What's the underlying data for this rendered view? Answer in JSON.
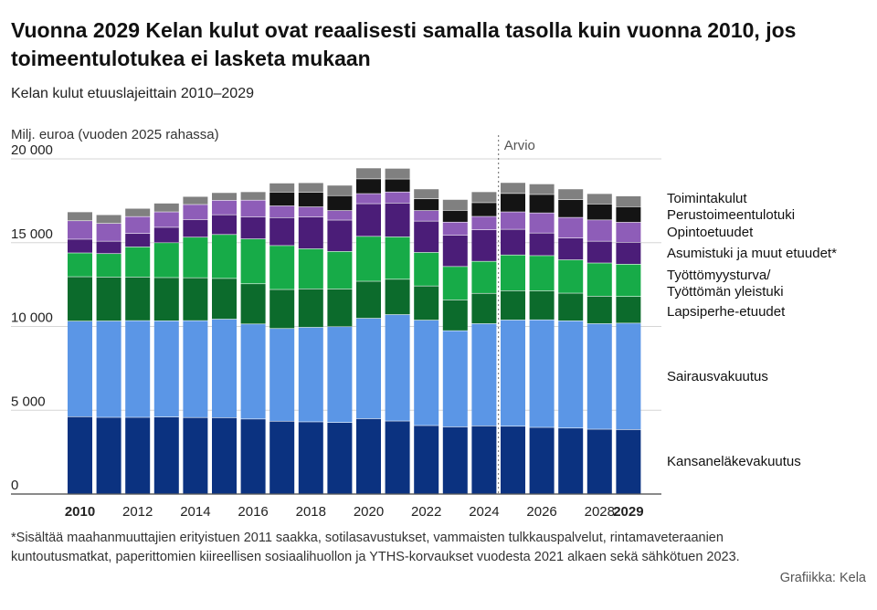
{
  "title": "Vuonna 2029 Kelan kulut ovat reaalisesti samalla tasolla kuin vuonna 2010, jos toimeentulotukea ei lasketa mukaan",
  "subtitle": "Kelan kulut etuuslajeittain 2010–2029",
  "footnote": "*Sisältää maahanmuuttajien erityistuen 2011 saakka, sotilasavustukset, vammaisten tulkkauspalvelut, rintamaveteraanien kuntoutusmatkat, paperittomien kiireellisen sosiaalihuollon ja YTHS-korvaukset vuodesta 2021 alkaen sekä sähkötuen 2023.",
  "credit": "Grafiikka: Kela",
  "chart_data": {
    "type": "bar",
    "stacked": true,
    "ylabel": "Milj. euroa (vuoden 2025 rahassa)",
    "ylim": [
      0,
      20000
    ],
    "yticks": [
      0,
      5000,
      10000,
      15000,
      20000
    ],
    "ytick_labels": [
      "0",
      "5 000",
      "10 000",
      "15 000",
      "20 000"
    ],
    "categories": [
      "2010",
      "2011",
      "2012",
      "2013",
      "2014",
      "2015",
      "2016",
      "2017",
      "2018",
      "2019",
      "2020",
      "2021",
      "2022",
      "2023",
      "2024",
      "2025",
      "2026",
      "2027",
      "2028",
      "2029"
    ],
    "xtick_labels": [
      {
        "label": "2010",
        "bold": true
      },
      {
        "label": "2012",
        "bold": false
      },
      {
        "label": "2014",
        "bold": false
      },
      {
        "label": "2016",
        "bold": false
      },
      {
        "label": "2018",
        "bold": false
      },
      {
        "label": "2020",
        "bold": false
      },
      {
        "label": "2022",
        "bold": false
      },
      {
        "label": "2024",
        "bold": false
      },
      {
        "label": "2026",
        "bold": false
      },
      {
        "label": "2028",
        "bold": false
      },
      {
        "label": "2029",
        "bold": true
      }
    ],
    "forecast_start": "2025",
    "forecast_label": "Arvio",
    "colors": {
      "kansanelake": "#0b3280",
      "sairaus": "#5b96e6",
      "lapsiperhe": "#0c6b2c",
      "tyottomyys": "#17ab48",
      "asumistuki": "#4b1d78",
      "opinto": "#8e5db8",
      "perustoimeentulo": "#141414",
      "toiminta": "#808080"
    },
    "series": [
      {
        "key": "kansanelake",
        "name": "Kansaneläkevakuutus",
        "values": [
          4600,
          4560,
          4560,
          4580,
          4550,
          4540,
          4460,
          4330,
          4290,
          4250,
          4480,
          4340,
          4070,
          3990,
          4050,
          4030,
          3960,
          3920,
          3850,
          3830
        ]
      },
      {
        "key": "sairaus",
        "name": "Sairausvakuutus",
        "values": [
          5700,
          5750,
          5770,
          5740,
          5780,
          5880,
          5670,
          5530,
          5640,
          5720,
          5990,
          6350,
          6290,
          5740,
          6100,
          6340,
          6420,
          6400,
          6300,
          6350
        ]
      },
      {
        "key": "lapsiperhe",
        "name": "Lapsiperhe-etuudet",
        "values": [
          2650,
          2620,
          2600,
          2580,
          2560,
          2430,
          2400,
          2330,
          2300,
          2250,
          2210,
          2110,
          2040,
          1840,
          1810,
          1750,
          1730,
          1650,
          1640,
          1590
        ]
      },
      {
        "key": "tyottomyys",
        "name": "Työttömyysturva/ Työttömän yleistuki",
        "values": [
          1420,
          1400,
          1800,
          2080,
          2420,
          2620,
          2680,
          2620,
          2390,
          2240,
          2680,
          2530,
          2000,
          1990,
          1910,
          2130,
          2100,
          1990,
          1980,
          1930
        ]
      },
      {
        "key": "asumistuki",
        "name": "Asumistuki ja muut etuudet*",
        "values": [
          820,
          740,
          800,
          920,
          1050,
          1180,
          1310,
          1670,
          1900,
          1870,
          1950,
          2020,
          1870,
          1870,
          1880,
          1530,
          1350,
          1300,
          1300,
          1300
        ]
      },
      {
        "key": "opinto",
        "name": "Opintoetuudet",
        "values": [
          1100,
          1060,
          1010,
          920,
          900,
          860,
          1000,
          700,
          600,
          570,
          600,
          660,
          630,
          780,
          800,
          1040,
          1200,
          1230,
          1270,
          1200
        ]
      },
      {
        "key": "perustoimeentulo",
        "name": "Perustoimeentulotuki",
        "values": [
          0,
          0,
          0,
          0,
          0,
          0,
          0,
          820,
          870,
          890,
          880,
          770,
          700,
          700,
          820,
          1100,
          1100,
          1060,
          950,
          930
        ]
      },
      {
        "key": "toiminta",
        "name": "Toimintakulut",
        "values": [
          530,
          520,
          490,
          520,
          480,
          460,
          500,
          540,
          570,
          620,
          650,
          640,
          590,
          650,
          650,
          650,
          630,
          640,
          620,
          640
        ]
      }
    ],
    "legend": [
      {
        "key": "toiminta",
        "label": "Toimintakulut"
      },
      {
        "key": "perustoimeentulo",
        "label": "Perustoimeentulotuki"
      },
      {
        "key": "opinto",
        "label": "Opintoetuudet"
      },
      {
        "key": "asumistuki",
        "label": "Asumistuki ja muut etuudet*"
      },
      {
        "key": "tyottomyys",
        "label": "Työttömyysturva/"
      },
      {
        "key": "tyottomyys",
        "label": "Työttömän yleistuki"
      },
      {
        "key": "lapsiperhe",
        "label": "Lapsiperhe-etuudet"
      },
      {
        "key": "sairaus",
        "label": "Sairausvakuutus"
      },
      {
        "key": "kansanelake",
        "label": "Kansaneläkevakuutus"
      }
    ]
  }
}
